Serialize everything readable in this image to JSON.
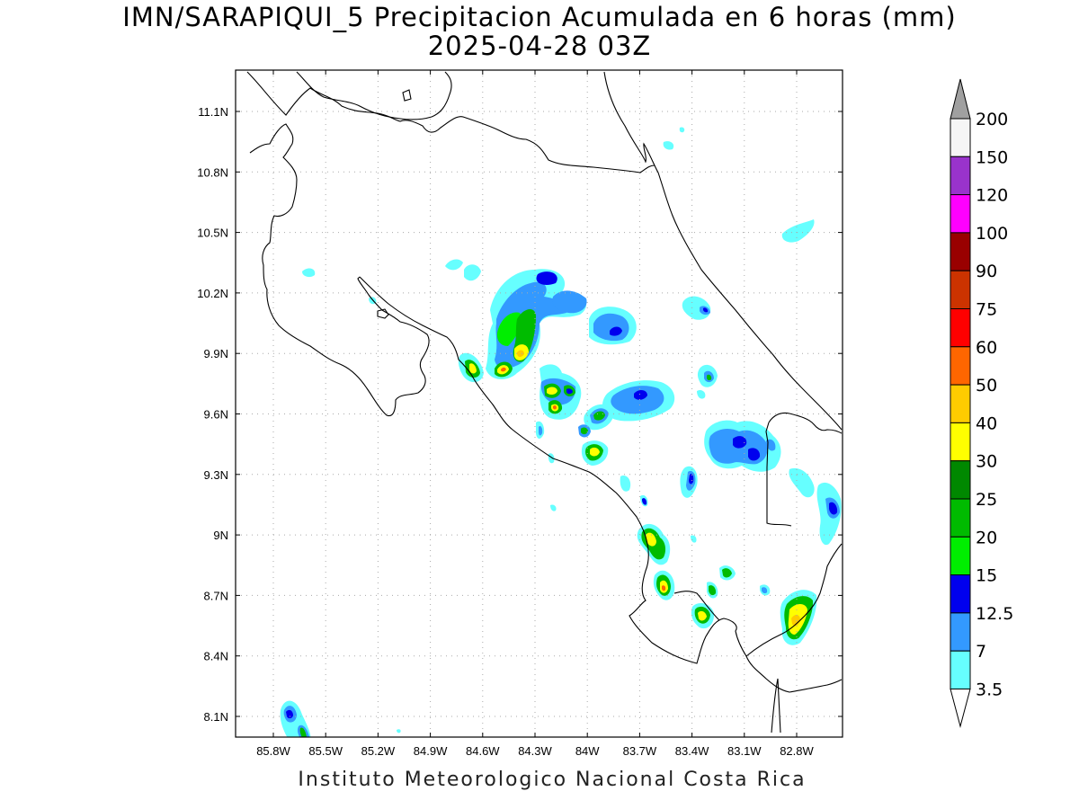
{
  "title_line1": "IMN/SARAPIQUI_5 Precipitacion Acumulada en 6 horas (mm)",
  "title_line2": "2025-04-28 03Z",
  "footer": "Instituto Meteorologico Nacional Costa Rica",
  "lat_ticks": [
    "11.1N",
    "10.8N",
    "10.5N",
    "10.2N",
    "9.9N",
    "9.6N",
    "9.3N",
    "9N",
    "8.7N",
    "8.4N",
    "8.1N"
  ],
  "lon_ticks": [
    "85.8W",
    "85.5W",
    "85.2W",
    "84.9W",
    "84.6W",
    "84.3W",
    "84W",
    "83.7W",
    "83.4W",
    "83.1W",
    "82.8W"
  ],
  "colorbar": {
    "labels": [
      "200",
      "150",
      "120",
      "100",
      "90",
      "75",
      "60",
      "50",
      "40",
      "30",
      "25",
      "20",
      "15",
      "12.5",
      "7",
      "3.5"
    ],
    "colors": {
      "top_arrow": "#a0a0a0",
      "c150_200": "#f5f5f5",
      "c120_150": "#9933cc",
      "c100_120": "#ff00ff",
      "c90_100": "#990000",
      "c75_90": "#cc3300",
      "c60_75": "#ff0000",
      "c50_60": "#ff6600",
      "c40_50": "#ffcc00",
      "c30_40": "#ffff00",
      "c25_30": "#008800",
      "c20_25": "#00bb00",
      "c15_20": "#00ee00",
      "c12_15": "#0000ee",
      "c7_12": "#3399ff",
      "c3_7": "#66ffff",
      "bottom_arrow": "#ffffff"
    }
  },
  "map_data": {
    "type": "contour_map",
    "variable": "6-hour accumulated precipitation (mm)",
    "lon_range": [
      -86.05,
      -83.05
    ],
    "lat_range": [
      8.0,
      11.3
    ],
    "grid": true,
    "precipitation_cells": [
      {
        "lon": -84.28,
        "lat": 10.28,
        "level": "12.5"
      },
      {
        "lon": -84.42,
        "lat": 10.05,
        "level": "20"
      },
      {
        "lon": -84.35,
        "lat": 9.95,
        "level": "40"
      },
      {
        "lon": -84.42,
        "lat": 9.82,
        "level": "50"
      },
      {
        "lon": -84.61,
        "lat": 9.83,
        "level": "30"
      },
      {
        "lon": -84.17,
        "lat": 9.72,
        "level": "40"
      },
      {
        "lon": -84.16,
        "lat": 9.62,
        "level": "40"
      },
      {
        "lon": -83.99,
        "lat": 9.42,
        "level": "40"
      },
      {
        "lon": -83.94,
        "lat": 9.6,
        "level": "25"
      },
      {
        "lon": -83.84,
        "lat": 10.05,
        "level": "12.5"
      },
      {
        "lon": -83.58,
        "lat": 9.73,
        "level": "12.5"
      },
      {
        "lon": -83.12,
        "lat": 9.46,
        "level": "12.5"
      },
      {
        "lon": -83.57,
        "lat": 8.99,
        "level": "40"
      },
      {
        "lon": -83.54,
        "lat": 8.73,
        "level": "50"
      },
      {
        "lon": -83.35,
        "lat": 8.6,
        "level": "40"
      },
      {
        "lon": -82.79,
        "lat": 8.6,
        "level": "40"
      },
      {
        "lon": -85.77,
        "lat": 8.09,
        "level": "12.5"
      }
    ]
  }
}
